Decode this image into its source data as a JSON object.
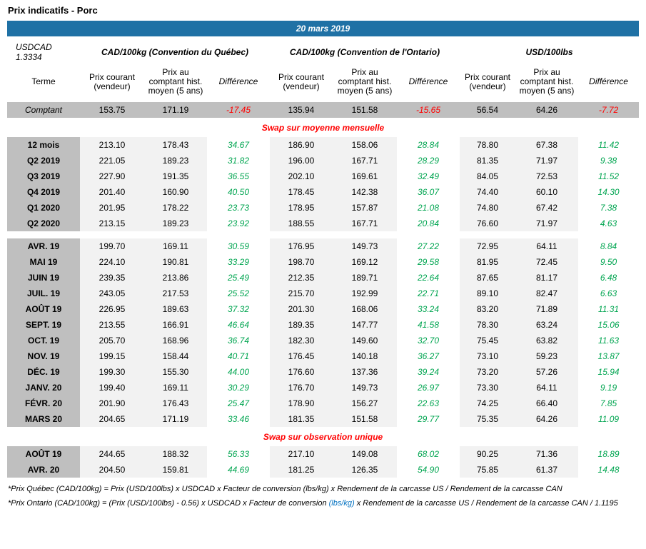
{
  "title": "Prix indicatifs - Porc",
  "banner": {
    "date": "20 mars 2019",
    "usdcad": "USDCAD 1.3334"
  },
  "groups": [
    {
      "label": "CAD/100kg (Convention du Québec)"
    },
    {
      "label": "CAD/100kg (Convention de l'Ontario)"
    },
    {
      "label": "USD/100lbs"
    }
  ],
  "column_headers": {
    "terme": "Terme",
    "prix_courant": "Prix courant (vendeur)",
    "prix_comptant": "Prix au comptant hist. moyen (5 ans)",
    "difference": "Différence"
  },
  "comptant_row": {
    "terme": "Comptant",
    "values": [
      "153.75",
      "171.19",
      "-17.45",
      "135.94",
      "151.58",
      "-15.65",
      "56.54",
      "64.26",
      "-7.72"
    ]
  },
  "sections": [
    {
      "header": "Swap sur moyenne mensuelle",
      "blocks": [
        {
          "rows": [
            {
              "terme": "12 mois",
              "values": [
                "213.10",
                "178.43",
                "34.67",
                "186.90",
                "158.06",
                "28.84",
                "78.80",
                "67.38",
                "11.42"
              ]
            },
            {
              "terme": "Q2 2019",
              "values": [
                "221.05",
                "189.23",
                "31.82",
                "196.00",
                "167.71",
                "28.29",
                "81.35",
                "71.97",
                "9.38"
              ]
            },
            {
              "terme": "Q3 2019",
              "values": [
                "227.90",
                "191.35",
                "36.55",
                "202.10",
                "169.61",
                "32.49",
                "84.05",
                "72.53",
                "11.52"
              ]
            },
            {
              "terme": "Q4 2019",
              "values": [
                "201.40",
                "160.90",
                "40.50",
                "178.45",
                "142.38",
                "36.07",
                "74.40",
                "60.10",
                "14.30"
              ]
            },
            {
              "terme": "Q1 2020",
              "values": [
                "201.95",
                "178.22",
                "23.73",
                "178.95",
                "157.87",
                "21.08",
                "74.80",
                "67.42",
                "7.38"
              ]
            },
            {
              "terme": "Q2 2020",
              "values": [
                "213.15",
                "189.23",
                "23.92",
                "188.55",
                "167.71",
                "20.84",
                "76.60",
                "71.97",
                "4.63"
              ]
            }
          ]
        },
        {
          "rows": [
            {
              "terme": "AVR. 19",
              "values": [
                "199.70",
                "169.11",
                "30.59",
                "176.95",
                "149.73",
                "27.22",
                "72.95",
                "64.11",
                "8.84"
              ]
            },
            {
              "terme": "MAI 19",
              "values": [
                "224.10",
                "190.81",
                "33.29",
                "198.70",
                "169.12",
                "29.58",
                "81.95",
                "72.45",
                "9.50"
              ]
            },
            {
              "terme": "JUIN 19",
              "values": [
                "239.35",
                "213.86",
                "25.49",
                "212.35",
                "189.71",
                "22.64",
                "87.65",
                "81.17",
                "6.48"
              ]
            },
            {
              "terme": "JUIL. 19",
              "values": [
                "243.05",
                "217.53",
                "25.52",
                "215.70",
                "192.99",
                "22.71",
                "89.10",
                "82.47",
                "6.63"
              ]
            },
            {
              "terme": "AOÛT 19",
              "values": [
                "226.95",
                "189.63",
                "37.32",
                "201.30",
                "168.06",
                "33.24",
                "83.20",
                "71.89",
                "11.31"
              ]
            },
            {
              "terme": "SEPT. 19",
              "values": [
                "213.55",
                "166.91",
                "46.64",
                "189.35",
                "147.77",
                "41.58",
                "78.30",
                "63.24",
                "15.06"
              ]
            },
            {
              "terme": "OCT. 19",
              "values": [
                "205.70",
                "168.96",
                "36.74",
                "182.30",
                "149.60",
                "32.70",
                "75.45",
                "63.82",
                "11.63"
              ]
            },
            {
              "terme": "NOV. 19",
              "values": [
                "199.15",
                "158.44",
                "40.71",
                "176.45",
                "140.18",
                "36.27",
                "73.10",
                "59.23",
                "13.87"
              ]
            },
            {
              "terme": "DÉC. 19",
              "values": [
                "199.30",
                "155.30",
                "44.00",
                "176.60",
                "137.36",
                "39.24",
                "73.20",
                "57.26",
                "15.94"
              ]
            },
            {
              "terme": "JANV. 20",
              "values": [
                "199.40",
                "169.11",
                "30.29",
                "176.70",
                "149.73",
                "26.97",
                "73.30",
                "64.11",
                "9.19"
              ]
            },
            {
              "terme": "FÉVR. 20",
              "values": [
                "201.90",
                "176.43",
                "25.47",
                "178.90",
                "156.27",
                "22.63",
                "74.25",
                "66.40",
                "7.85"
              ]
            },
            {
              "terme": "MARS 20",
              "values": [
                "204.65",
                "171.19",
                "33.46",
                "181.35",
                "151.58",
                "29.77",
                "75.35",
                "64.26",
                "11.09"
              ]
            }
          ]
        }
      ]
    },
    {
      "header": "Swap sur observation unique",
      "blocks": [
        {
          "rows": [
            {
              "terme": "AOÛT 19",
              "values": [
                "244.65",
                "188.32",
                "56.33",
                "217.10",
                "149.08",
                "68.02",
                "90.25",
                "71.36",
                "18.89"
              ]
            },
            {
              "terme": "AVR. 20",
              "values": [
                "204.50",
                "159.81",
                "44.69",
                "181.25",
                "126.35",
                "54.90",
                "75.85",
                "61.37",
                "14.48"
              ]
            }
          ]
        }
      ]
    }
  ],
  "footnotes": {
    "quebec": "*Prix Québec (CAD/100kg) = Prix (USD/100lbs) x USDCAD x Facteur de conversion (lbs/kg) x Rendement de la carcasse US / Rendement de la carcasse CAN",
    "ontario_pre": "*Prix Ontario (CAD/100kg) = (Prix (USD/100lbs) - 0.56) x USDCAD x Facteur de conversion ",
    "ontario_highlight": "(lbs/kg)",
    "ontario_post": " x Rendement de la carcasse US / Rendement de la carcasse CAN / 1.1195"
  },
  "colors": {
    "banner_blue": "#1F71A5",
    "header_gray": "#BFBFBF",
    "cell_gray": "#F2F2F2",
    "positive_green": "#00A550",
    "negative_red": "#FF0000",
    "section_red": "#FF0000",
    "footnote_blue": "#0070C0"
  }
}
